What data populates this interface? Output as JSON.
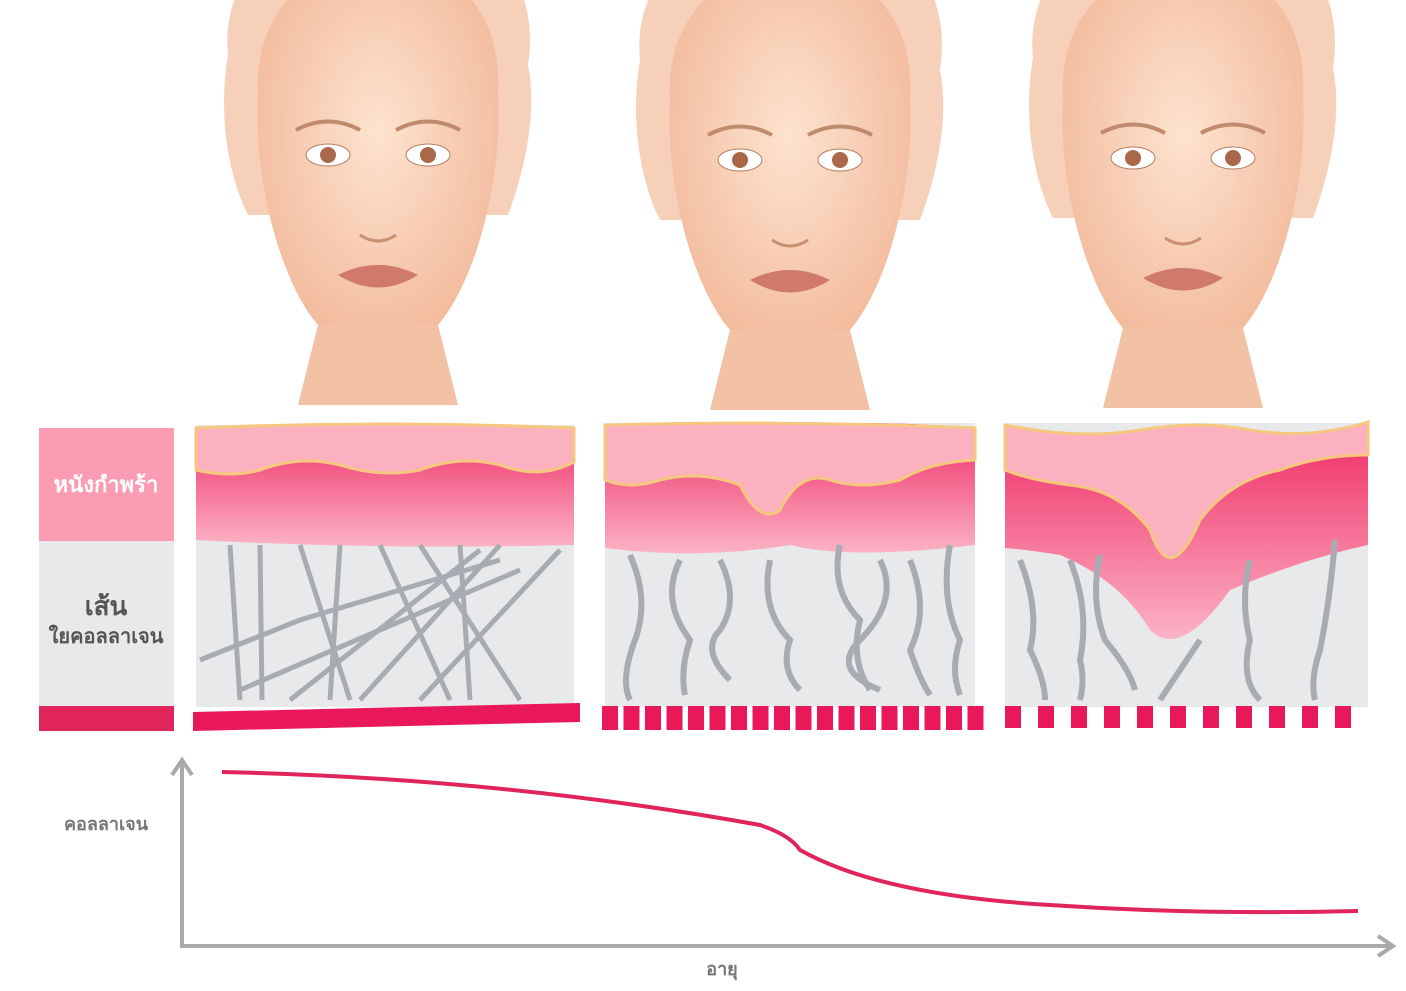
{
  "legend": {
    "epidermis": "หนังกำพร้า",
    "fiber_line1": "เส้น",
    "fiber_line2": "ใยคอลลาเจน"
  },
  "graph": {
    "y_label": "คอลลาเจน",
    "x_label": "อายุ"
  }
}
